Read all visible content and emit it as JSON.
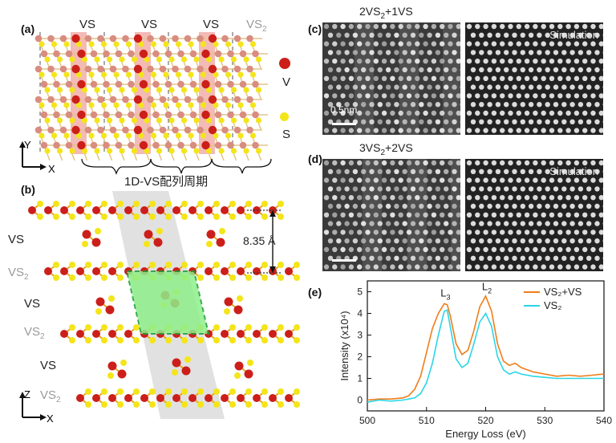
{
  "panel_a": {
    "label": "(a)",
    "vs_labels": [
      "VS",
      "VS",
      "VS"
    ],
    "vs2_label": "VS",
    "vs2_sub": "2",
    "legend": {
      "v": "V",
      "s": "S"
    },
    "axes": {
      "y": "Y",
      "x": "X"
    },
    "period_caption": "1D-VS配列周期",
    "colors": {
      "v": "#cc1f1a",
      "v_light": "#d98c80",
      "s": "#f4e51a",
      "highlight": "#e03a2f"
    }
  },
  "panel_b": {
    "label": "(b)",
    "rows": [
      {
        "name": "VS",
        "sub": "",
        "gray": false
      },
      {
        "name": "VS",
        "sub": "2",
        "gray": true
      },
      {
        "name": "VS",
        "sub": "",
        "gray": false
      },
      {
        "name": "VS",
        "sub": "2",
        "gray": true
      },
      {
        "name": "VS",
        "sub": "",
        "gray": false
      },
      {
        "name": "VS",
        "sub": "2",
        "gray": true
      }
    ],
    "spacing": "8.35 Å",
    "axes": {
      "z": "Z",
      "x": "X"
    },
    "colors": {
      "cell": "#8ef08a",
      "cell_border": "#1e9c34",
      "band": "#c8c8c8"
    }
  },
  "panel_c": {
    "label": "(c)",
    "title": {
      "a": "2VS",
      "a_sub": "2",
      "b": "+1VS"
    },
    "sim_label": "Simulation",
    "scale": "0.5nm"
  },
  "panel_d": {
    "label": "(d)",
    "title": {
      "a": "3VS",
      "a_sub": "2",
      "b": "+2VS"
    },
    "sim_label": "Simulation"
  },
  "panel_e": {
    "label": "(e)",
    "chart_data": {
      "type": "line",
      "xlabel": "Energy Loss (eV)",
      "ylabel": "Intensity (x10⁴)",
      "xlim": [
        500,
        540
      ],
      "ylim": [
        -0.5,
        5.5
      ],
      "x_ticks": [
        500,
        510,
        520,
        530,
        540
      ],
      "y_ticks": [
        0,
        1,
        2,
        3,
        4,
        5
      ],
      "annotations": [
        {
          "text": "L",
          "sub": "3",
          "x": 513.2,
          "y": 4.55
        },
        {
          "text": "L",
          "sub": "2",
          "x": 520.2,
          "y": 4.85
        }
      ],
      "legend": {
        "placement": "top-right"
      },
      "series": [
        {
          "name": "VS₂+VS",
          "color": "#f07d1a",
          "x": [
            500,
            502,
            504,
            506,
            507,
            508,
            509,
            510,
            511,
            512,
            513,
            513.5,
            514,
            515,
            516,
            517,
            518,
            519,
            520,
            521,
            522,
            523,
            524,
            525,
            526,
            528,
            530,
            532,
            534,
            536,
            538,
            540
          ],
          "y": [
            0.0,
            0.05,
            0.05,
            0.1,
            0.2,
            0.5,
            1.1,
            2.2,
            3.3,
            4.0,
            4.45,
            4.4,
            3.9,
            2.6,
            2.1,
            2.3,
            3.2,
            4.3,
            4.8,
            4.1,
            2.6,
            1.8,
            1.6,
            1.7,
            1.5,
            1.3,
            1.2,
            1.1,
            1.15,
            1.1,
            1.15,
            1.2
          ]
        },
        {
          "name": "VS₂",
          "color": "#2ad6e6",
          "x": [
            500,
            502,
            504,
            506,
            507,
            508,
            509,
            510,
            511,
            512,
            513,
            513.5,
            514,
            515,
            516,
            517,
            518,
            519,
            520,
            521,
            522,
            523,
            524,
            525,
            526,
            528,
            530,
            532,
            534,
            536,
            538,
            540
          ],
          "y": [
            -0.1,
            0.0,
            -0.05,
            0.0,
            0.05,
            0.1,
            0.3,
            0.8,
            1.7,
            3.0,
            4.1,
            4.15,
            3.4,
            1.9,
            1.5,
            1.7,
            2.6,
            3.6,
            4.0,
            3.4,
            2.0,
            1.4,
            1.2,
            1.3,
            1.2,
            1.1,
            1.05,
            1.0,
            1.0,
            1.0,
            1.0,
            1.0
          ]
        }
      ]
    }
  }
}
